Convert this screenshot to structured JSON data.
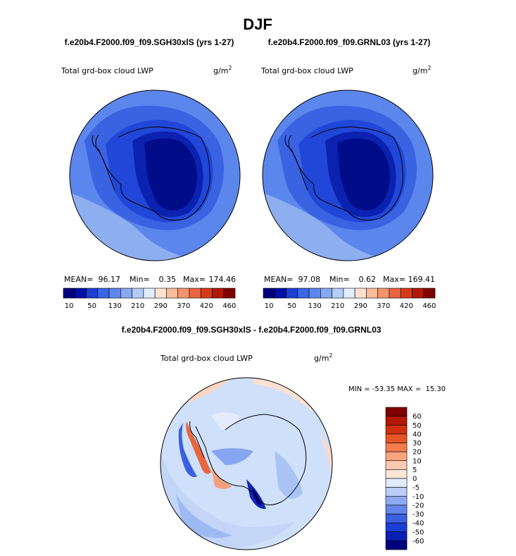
{
  "title": "DJF",
  "panels": [
    {
      "case": "f.e20b4.F2000.f09_f09.SGH30xlS (yrs 1-27)",
      "variable": "Total grd-box cloud LWP",
      "unit_base": "g/m",
      "unit_exp": "2",
      "stats": {
        "mean_label": "MEAN=",
        "mean": "96.17",
        "min_label": "Min=",
        "min": "0.35",
        "max_label": "Max=",
        "max": "174.46"
      }
    },
    {
      "case": "f.e20b4.F2000.f09_f09.GRNL03 (yrs 1-27)",
      "variable": "Total grd-box cloud LWP",
      "unit_base": "g/m",
      "unit_exp": "2",
      "stats": {
        "mean_label": "MEAN=",
        "mean": "97.08",
        "min_label": "Min=",
        "min": "0.62",
        "max_label": "Max=",
        "max": "169.41"
      }
    }
  ],
  "colorbar_top": {
    "colors": [
      "#00007f",
      "#0010a8",
      "#1c3fd4",
      "#3a66e6",
      "#5c86ee",
      "#86a8f3",
      "#b4cbf8",
      "#e2edfc",
      "#fde1cf",
      "#f8bd9c",
      "#f2946c",
      "#e8643f",
      "#d63a1c",
      "#b01808",
      "#7f0000"
    ],
    "tick_labels": [
      "10",
      "50",
      "130",
      "210",
      "290",
      "370",
      "420",
      "460"
    ]
  },
  "diff": {
    "title": "f.e20b4.F2000.f09_f09.SGH30xlS - f.e20b4.F2000.f09_f09.GRNL03",
    "variable": "Total grd-box cloud LWP",
    "unit_base": "g/m",
    "unit_exp": "2",
    "minmax": "MIN = -53.35 MAX =  15.30",
    "colorbar": {
      "colors": [
        "#7f0000",
        "#b01808",
        "#d0300f",
        "#e65525",
        "#f47d4f",
        "#f9a47e",
        "#fcc9b0",
        "#fde6d8",
        "#e0ecfb",
        "#b9cdf7",
        "#8ea9f1",
        "#6385ea",
        "#3b60e2",
        "#1b3ed6",
        "#0a1fb4",
        "#00007f"
      ],
      "tick_labels": [
        "60",
        "50",
        "40",
        "30",
        "20",
        "10",
        "5",
        "0",
        "-5",
        "-10",
        "-20",
        "-30",
        "-40",
        "-50",
        "-60"
      ]
    }
  }
}
